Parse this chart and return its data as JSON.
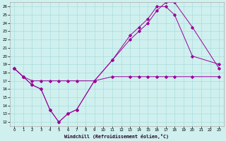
{
  "xlabel": "Windchill (Refroidissement éolien,°C)",
  "bg_color": "#cff0ee",
  "grid_color": "#aadddd",
  "line_color": "#990099",
  "xlim": [
    -0.5,
    23.5
  ],
  "ylim": [
    11.5,
    26.5
  ],
  "xticks": [
    0,
    1,
    2,
    3,
    4,
    5,
    6,
    7,
    8,
    9,
    10,
    11,
    12,
    13,
    14,
    15,
    16,
    17,
    18,
    19,
    20,
    21,
    22,
    23
  ],
  "yticks": [
    12,
    13,
    14,
    15,
    16,
    17,
    18,
    19,
    20,
    21,
    22,
    23,
    24,
    25,
    26
  ],
  "series": [
    {
      "x": [
        0,
        1,
        2,
        3,
        4,
        5,
        6,
        7,
        9,
        11,
        13,
        14,
        15,
        16,
        17,
        18,
        20,
        23
      ],
      "y": [
        18.5,
        17.5,
        16.5,
        16.0,
        13.5,
        12.0,
        13.0,
        13.5,
        17.0,
        19.5,
        22.0,
        23.0,
        24.0,
        25.5,
        26.5,
        26.5,
        23.5,
        18.5
      ]
    },
    {
      "x": [
        0,
        1,
        2,
        3,
        4,
        5,
        6,
        7,
        9,
        11,
        13,
        14,
        15,
        16,
        17,
        18,
        20,
        23
      ],
      "y": [
        18.5,
        17.5,
        17.0,
        17.0,
        17.0,
        17.0,
        17.0,
        17.0,
        17.0,
        17.5,
        17.5,
        17.5,
        17.5,
        17.5,
        17.5,
        17.5,
        17.5,
        17.5
      ]
    },
    {
      "x": [
        0,
        1,
        2,
        3,
        4,
        5,
        6,
        7,
        9,
        11,
        13,
        14,
        15,
        16,
        17,
        18,
        20,
        23
      ],
      "y": [
        18.5,
        17.5,
        16.5,
        16.0,
        13.5,
        12.0,
        13.0,
        13.5,
        17.0,
        19.5,
        22.5,
        23.5,
        24.5,
        26.0,
        26.0,
        25.0,
        20.0,
        19.0
      ]
    }
  ]
}
